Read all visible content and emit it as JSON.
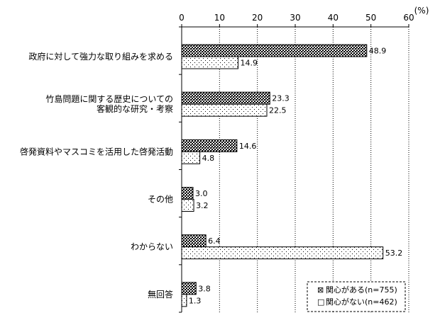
{
  "chart_data": {
    "type": "bar",
    "orientation": "horizontal",
    "unit_label": "(%)",
    "xlim": [
      0,
      60
    ],
    "x_ticks": [
      0,
      10,
      20,
      30,
      40,
      50,
      60
    ],
    "grid": "dotted-vertical",
    "legend_position": "bottom-right",
    "categories": [
      [
        "政府に対して強力な取り組みを求める"
      ],
      [
        "竹島問題に関する歴史についての",
        "客観的な研究・考察"
      ],
      [
        "啓発資料やマスコミを活用した啓発活動"
      ],
      [
        "その他"
      ],
      [
        "わからない"
      ],
      [
        "無回答"
      ]
    ],
    "series": [
      {
        "name": "関心がある(n=755)",
        "pattern": "dense-checker",
        "values": [
          48.9,
          23.3,
          14.6,
          3.0,
          6.4,
          3.8
        ]
      },
      {
        "name": "関心がない(n=462)",
        "pattern": "sparse-dots",
        "values": [
          14.9,
          22.5,
          4.8,
          3.2,
          53.2,
          1.3
        ]
      }
    ],
    "value_labels": [
      [
        "48.9",
        "23.3",
        "14.6",
        "3.0",
        "6.4",
        "3.8"
      ],
      [
        "14.9",
        "22.5",
        "4.8",
        "3.2",
        "53.2",
        "1.3"
      ]
    ],
    "legend_markers": [
      "⊠",
      "□"
    ]
  }
}
